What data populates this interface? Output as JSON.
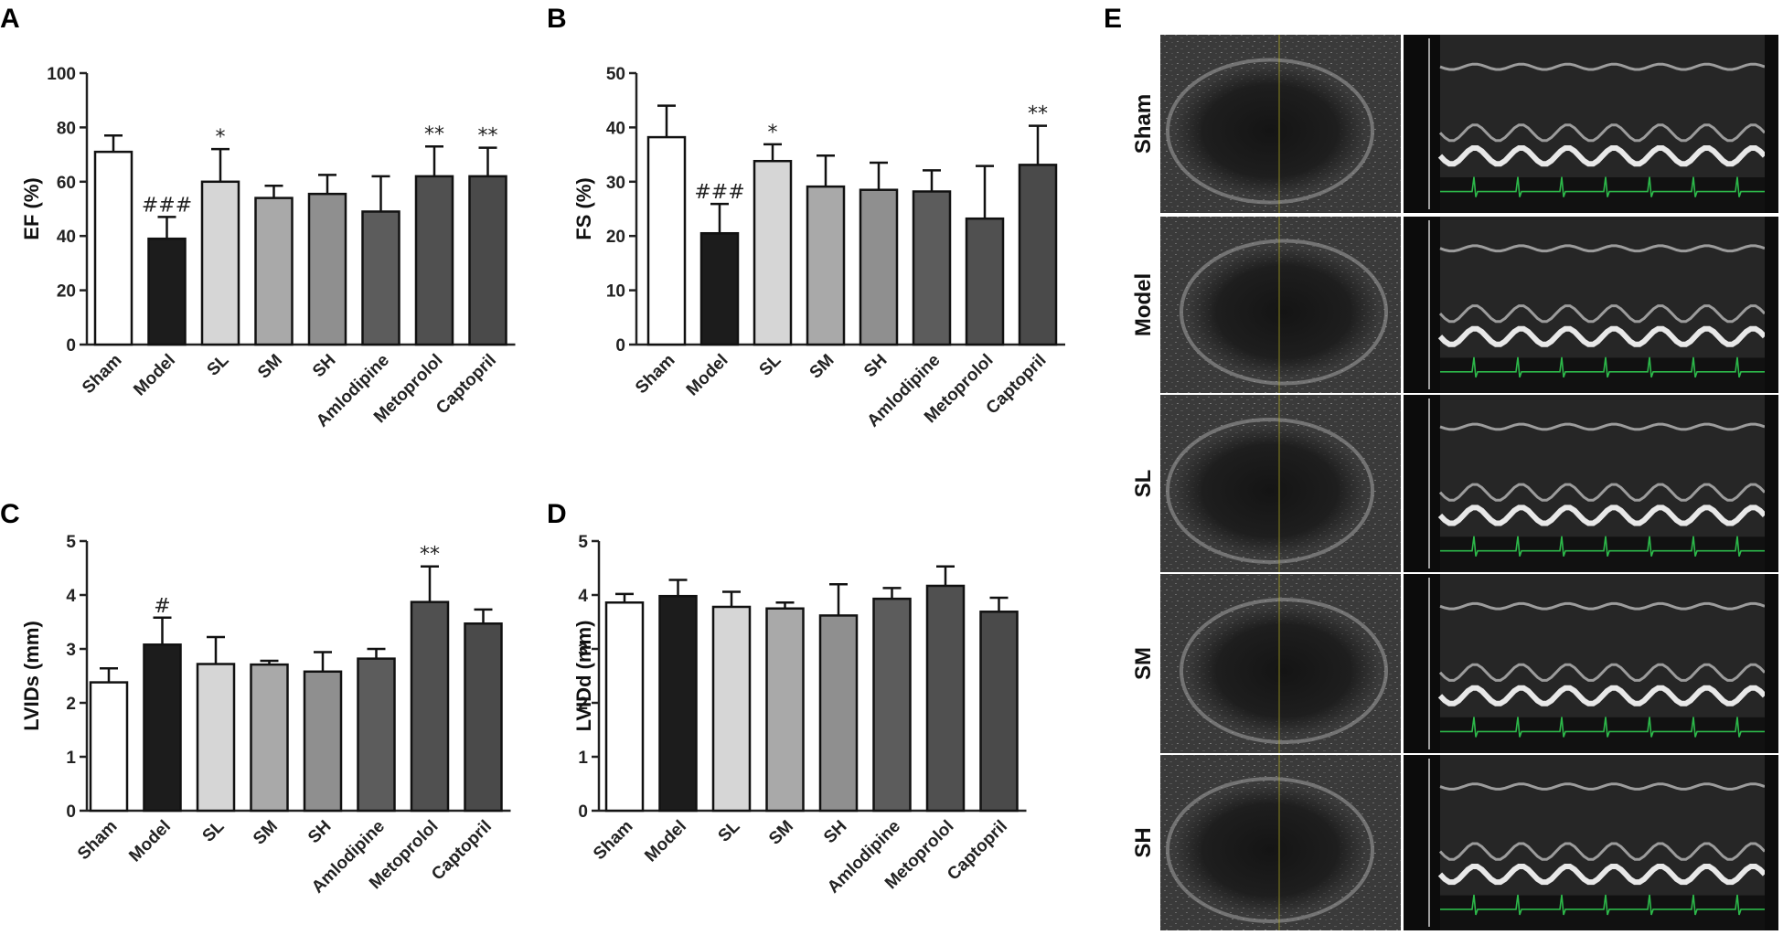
{
  "panel_letters": {
    "a": "A",
    "b": "B",
    "c": "C",
    "d": "D",
    "e": "E"
  },
  "bar_colors": [
    "#ffffff",
    "#1c1c1c",
    "#d6d6d6",
    "#a9a9a9",
    "#8f8f8f",
    "#5c5c5c",
    "#505050",
    "#4a4a4a"
  ],
  "chart_data": [
    {
      "panel": "A",
      "type": "bar",
      "categories": [
        "Sham",
        "Model",
        "SL",
        "SM",
        "SH",
        "Amlodipine",
        "Metoprolol",
        "Captopril"
      ],
      "values": [
        71,
        39,
        60,
        54,
        55.5,
        49,
        62,
        62
      ],
      "errors": [
        6,
        8,
        12,
        4.5,
        7,
        13,
        11,
        10.5
      ],
      "annotations": [
        "",
        "###",
        "*",
        "",
        "",
        "",
        "**",
        "**"
      ],
      "ylabel": "EF (%)",
      "ylim": [
        0,
        100
      ],
      "yticks": [
        0,
        20,
        40,
        60,
        80,
        100
      ]
    },
    {
      "panel": "B",
      "type": "bar",
      "categories": [
        "Sham",
        "Model",
        "SL",
        "SM",
        "SH",
        "Amlodipine",
        "Metoprolol",
        "Captopril"
      ],
      "values": [
        38.2,
        20.5,
        33.8,
        29.1,
        28.5,
        28.2,
        23.2,
        33.1
      ],
      "errors": [
        5.8,
        5.4,
        3.1,
        5.7,
        5,
        3.9,
        9.7,
        7.2
      ],
      "annotations": [
        "",
        "###",
        "*",
        "",
        "",
        "",
        "",
        "**"
      ],
      "ylabel": "FS (%)",
      "ylim": [
        0,
        50
      ],
      "yticks": [
        0,
        10,
        20,
        30,
        40,
        50
      ]
    },
    {
      "panel": "C",
      "type": "bar",
      "categories": [
        "Sham",
        "Model",
        "SL",
        "SM",
        "SH",
        "Amlodipine",
        "Metoprolol",
        "Captopril"
      ],
      "values": [
        2.38,
        3.08,
        2.72,
        2.71,
        2.58,
        2.82,
        3.87,
        3.47
      ],
      "errors": [
        0.26,
        0.5,
        0.5,
        0.07,
        0.36,
        0.18,
        0.66,
        0.26
      ],
      "annotations": [
        "",
        "#",
        "",
        "",
        "",
        "",
        "**",
        ""
      ],
      "ylabel": "LVIDs (mm)",
      "ylim": [
        0,
        5
      ],
      "yticks": [
        0,
        1,
        2,
        3,
        4,
        5
      ]
    },
    {
      "panel": "D",
      "type": "bar",
      "categories": [
        "Sham",
        "Model",
        "SL",
        "SM",
        "SH",
        "Amlodipine",
        "Metoprolol",
        "Captopril"
      ],
      "values": [
        3.86,
        3.98,
        3.78,
        3.75,
        3.62,
        3.93,
        4.17,
        3.69
      ],
      "errors": [
        0.16,
        0.3,
        0.28,
        0.11,
        0.58,
        0.2,
        0.36,
        0.26
      ],
      "annotations": [
        "",
        "",
        "",
        "",
        "",
        "",
        "",
        ""
      ],
      "ylabel": "LVIDd (mm)",
      "ylim": [
        0,
        5
      ],
      "yticks": [
        0,
        1,
        2,
        3,
        4,
        5
      ]
    }
  ],
  "echo_panel": {
    "rows": [
      "Sham",
      "Model",
      "SL",
      "SM",
      "SH"
    ]
  }
}
